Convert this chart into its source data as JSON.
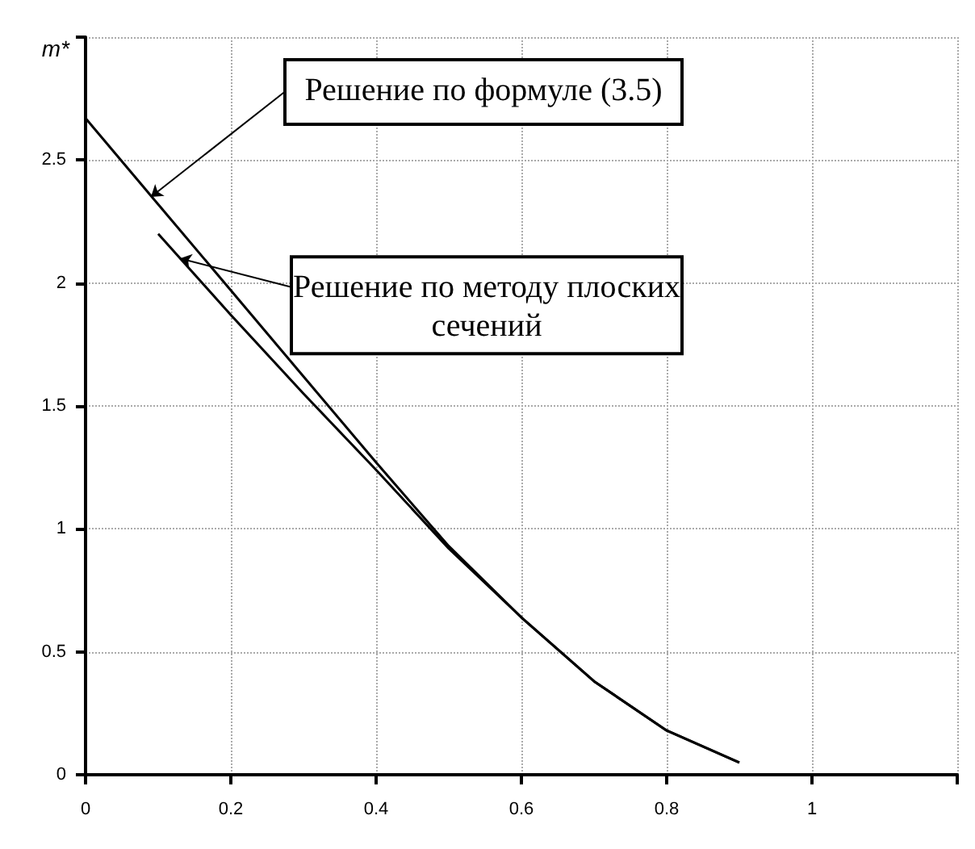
{
  "chart_data": {
    "type": "line",
    "ylabel": "m*",
    "xlim": [
      0,
      1.2
    ],
    "xticks": [
      0,
      0.2,
      0.4,
      0.6,
      0.8,
      1,
      {
        "value": 1.2,
        "label": null
      }
    ],
    "ylim": [
      0,
      3
    ],
    "yticks": [
      0,
      0.5,
      1,
      1.5,
      2,
      2.5,
      {
        "value": 3,
        "label": null
      }
    ],
    "grid": true,
    "marker": "none",
    "line_style": "solid",
    "series": [
      {
        "color": "#000000",
        "x": [
          0,
          0.1,
          0.2,
          0.3,
          0.4,
          0.5,
          0.6,
          0.7,
          0.8,
          0.9
        ],
        "values": [
          2.67,
          2.32,
          1.97,
          1.62,
          1.27,
          0.93,
          0.64,
          0.38,
          0.18,
          0.05
        ]
      },
      {
        "color": "#000000",
        "x": [
          0.1,
          0.2,
          0.3,
          0.4,
          0.5,
          0.6,
          0.7,
          0.8,
          0.9
        ],
        "values": [
          2.2,
          1.87,
          1.55,
          1.24,
          0.92,
          0.64,
          0.38,
          0.18,
          0.05
        ]
      }
    ],
    "annotations": [
      {
        "text": "Решение по формуле (3.5)",
        "x": 0.09,
        "y": 2.35
      },
      {
        "text": "Решение по методу плоских\nсечений",
        "x": 0.13,
        "y": 2.1
      }
    ]
  }
}
